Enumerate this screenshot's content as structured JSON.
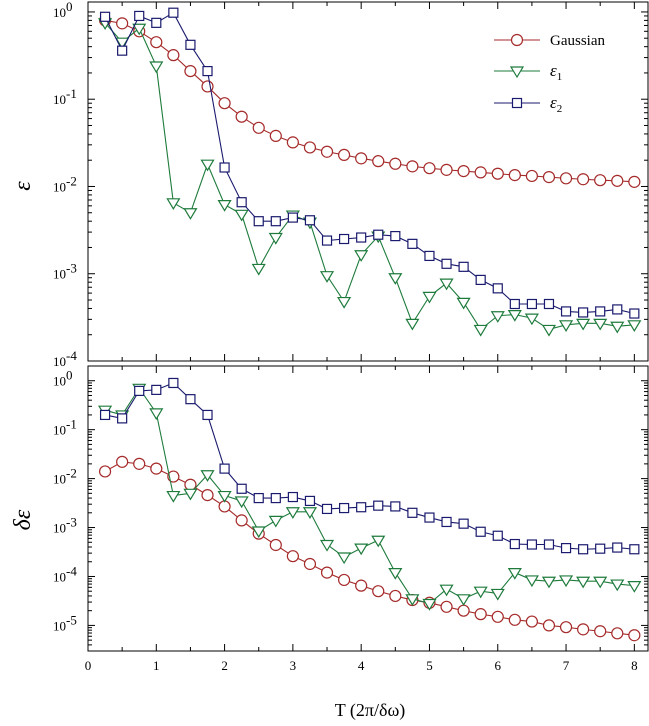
{
  "chart_data": [
    {
      "type": "line",
      "panel": "top",
      "title": "",
      "xlabel": "",
      "ylabel": "ε",
      "yscale": "log",
      "xlim": [
        0,
        8.2
      ],
      "ylim": [
        0.0001,
        1.3
      ],
      "grid": false,
      "legend_position": "top-right",
      "x": [
        0.25,
        0.5,
        0.75,
        1.0,
        1.25,
        1.5,
        1.75,
        2.0,
        2.25,
        2.5,
        2.75,
        3.0,
        3.25,
        3.5,
        3.75,
        4.0,
        4.25,
        4.5,
        4.75,
        5.0,
        5.25,
        5.5,
        5.75,
        6.0,
        6.25,
        6.5,
        6.75,
        7.0,
        7.25,
        7.5,
        7.75,
        8.0
      ],
      "series": [
        {
          "name": "Gaussian",
          "color": "#a52a2a",
          "marker": "circle",
          "values": [
            0.8,
            0.74,
            0.6,
            0.45,
            0.32,
            0.21,
            0.14,
            0.09,
            0.063,
            0.047,
            0.038,
            0.032,
            0.028,
            0.025,
            0.023,
            0.021,
            0.0195,
            0.0182,
            0.017,
            0.0162,
            0.0155,
            0.015,
            0.0145,
            0.014,
            0.0135,
            0.0132,
            0.0128,
            0.0124,
            0.0121,
            0.0118,
            0.0116,
            0.0113
          ]
        },
        {
          "name": "ε1",
          "name_main": "ε",
          "name_sub": "1",
          "color": "#1e7b3c",
          "marker": "triangle-down",
          "values": [
            0.75,
            0.45,
            0.65,
            0.24,
            0.0065,
            0.005,
            0.018,
            0.0062,
            0.0048,
            0.00115,
            0.0026,
            0.0047,
            0.0039,
            0.00095,
            0.00048,
            0.00165,
            0.0027,
            0.0009,
            0.00027,
            0.00055,
            0.00078,
            0.00047,
            0.00023,
            0.00033,
            0.00034,
            0.00031,
            0.00023,
            0.00026,
            0.00027,
            0.00027,
            0.00025,
            0.00026
          ]
        },
        {
          "name": "ε2",
          "name_main": "ε",
          "name_sub": "2",
          "color": "#1a1a6e",
          "marker": "square",
          "values": [
            0.88,
            0.36,
            0.9,
            0.75,
            0.98,
            0.42,
            0.21,
            0.0165,
            0.0066,
            0.004,
            0.004,
            0.0044,
            0.0041,
            0.0024,
            0.0025,
            0.0026,
            0.0028,
            0.0027,
            0.0022,
            0.0016,
            0.0013,
            0.0012,
            0.00085,
            0.00068,
            0.00045,
            0.00045,
            0.00045,
            0.00037,
            0.00036,
            0.00037,
            0.00039,
            0.00035
          ]
        }
      ]
    },
    {
      "type": "line",
      "panel": "bottom",
      "title": "",
      "xlabel": "T (2π/δω)",
      "ylabel": "δε",
      "yscale": "log",
      "xlim": [
        0,
        8.2
      ],
      "ylim": [
        3e-06,
        2
      ],
      "grid": false,
      "x": [
        0.25,
        0.5,
        0.75,
        1.0,
        1.25,
        1.5,
        1.75,
        2.0,
        2.25,
        2.5,
        2.75,
        3.0,
        3.25,
        3.5,
        3.75,
        4.0,
        4.25,
        4.5,
        4.75,
        5.0,
        5.25,
        5.5,
        5.75,
        6.0,
        6.25,
        6.5,
        6.75,
        7.0,
        7.25,
        7.5,
        7.75,
        8.0
      ],
      "series": [
        {
          "name": "Gaussian",
          "color": "#a52a2a",
          "marker": "circle",
          "values": [
            0.014,
            0.022,
            0.02,
            0.016,
            0.011,
            0.0075,
            0.0046,
            0.0027,
            0.0014,
            0.00075,
            0.00044,
            0.00026,
            0.00018,
            0.00012,
            8.5e-05,
            6.5e-05,
            5e-05,
            4e-05,
            3.3e-05,
            2.9e-05,
            2.4e-05,
            2e-05,
            1.7e-05,
            1.5e-05,
            1.3e-05,
            1.2e-05,
            1e-05,
            9.2e-06,
            8.3e-06,
            7.6e-06,
            6.9e-06,
            6.3e-06
          ]
        },
        {
          "name": "ε1",
          "color": "#1e7b3c",
          "marker": "triangle-down",
          "values": [
            0.25,
            0.2,
            0.7,
            0.22,
            0.0045,
            0.005,
            0.012,
            0.0045,
            0.0035,
            0.00085,
            0.0014,
            0.0021,
            0.0021,
            0.00045,
            0.00025,
            0.00038,
            0.00055,
            0.00012,
            3.5e-05,
            2.8e-05,
            5.5e-05,
            3.5e-05,
            5e-05,
            4.5e-05,
            0.00012,
            8.5e-05,
            8e-05,
            8.5e-05,
            8e-05,
            8e-05,
            7e-05,
            6.5e-05
          ]
        },
        {
          "name": "ε2",
          "color": "#1a1a6e",
          "marker": "square",
          "values": [
            0.2,
            0.17,
            0.62,
            0.65,
            0.9,
            0.42,
            0.2,
            0.016,
            0.0062,
            0.004,
            0.004,
            0.0042,
            0.0035,
            0.0024,
            0.0025,
            0.0026,
            0.0028,
            0.0027,
            0.002,
            0.0016,
            0.0013,
            0.0012,
            0.00082,
            0.00068,
            0.00046,
            0.00045,
            0.00045,
            0.00038,
            0.00036,
            0.00037,
            0.00039,
            0.00036
          ]
        }
      ]
    }
  ],
  "x_ticks": [
    "0",
    "1",
    "2",
    "3",
    "4",
    "5",
    "6",
    "7",
    "8"
  ],
  "top_y_ticks": [
    {
      "e": "0",
      "v": 1
    },
    {
      "e": "-1",
      "v": 0.1
    },
    {
      "e": "-2",
      "v": 0.01
    },
    {
      "e": "-3",
      "v": 0.001
    },
    {
      "e": "-4",
      "v": 0.0001
    }
  ],
  "bottom_y_ticks": [
    {
      "e": "0",
      "v": 1
    },
    {
      "e": "-1",
      "v": 0.1
    },
    {
      "e": "-2",
      "v": 0.01
    },
    {
      "e": "-3",
      "v": 0.001
    },
    {
      "e": "-4",
      "v": 0.0001
    },
    {
      "e": "-5",
      "v": 1e-05
    }
  ],
  "tick_base": "10"
}
